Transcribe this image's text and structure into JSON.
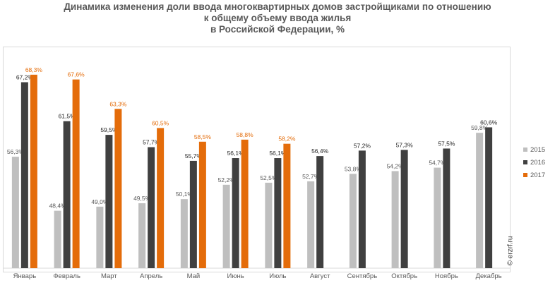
{
  "title_lines": [
    "Динамика изменения доли ввода многоквартирных домов застройщиками по отношению",
    "к общему объему ввода жилья",
    "в Российской  Федерации, %"
  ],
  "watermark": "© erzrf.ru",
  "chart_data": {
    "type": "bar",
    "title": "Динамика изменения доли ввода многоквартирных домов застройщиками по отношению к общему объему ввода жилья в Российской  Федерации, %",
    "categories": [
      "Январь",
      "Февраль",
      "Март",
      "Апрель",
      "Май",
      "Июнь",
      "Июль",
      "Август",
      "Сентябрь",
      "Октябрь",
      "Ноябрь",
      "Декабрь"
    ],
    "ylim": [
      40,
      72
    ],
    "grid": false,
    "legend_position": "right",
    "series": [
      {
        "name": "2015",
        "color": "#bfbfbf",
        "label_color": "#595959",
        "values": [
          56.3,
          48.4,
          49.0,
          49.5,
          50.1,
          52.2,
          52.5,
          52.7,
          53.8,
          54.2,
          54.7,
          59.8
        ],
        "labels": [
          "56,3%",
          "48,4%",
          "49,0%",
          "49,5%",
          "50,1%",
          "52,2%",
          "52,5%",
          "52,7%",
          "53,8%",
          "54,2%",
          "54,7%",
          "59,8%"
        ]
      },
      {
        "name": "2016",
        "color": "#404040",
        "label_color": "#262626",
        "values": [
          67.2,
          61.5,
          59.5,
          57.7,
          55.7,
          56.1,
          56.1,
          56.4,
          57.2,
          57.3,
          57.5,
          60.6
        ],
        "labels": [
          "67,2%",
          "61,5%",
          "59,5%",
          "57,7%",
          "55,7%",
          "56,1%",
          "56,1%",
          "56,4%",
          "57,2%",
          "57,3%",
          "57,5%",
          "60,6%"
        ]
      },
      {
        "name": "2017",
        "color": "#e46c0a",
        "label_color": "#e46c0a",
        "values": [
          68.3,
          67.6,
          63.3,
          60.5,
          58.5,
          58.8,
          58.2,
          null,
          null,
          null,
          null,
          null
        ],
        "labels": [
          "68,3%",
          "67,6%",
          "63,3%",
          "60,5%",
          "58,5%",
          "58,8%",
          "58,2%",
          null,
          null,
          null,
          null,
          null
        ]
      }
    ]
  }
}
